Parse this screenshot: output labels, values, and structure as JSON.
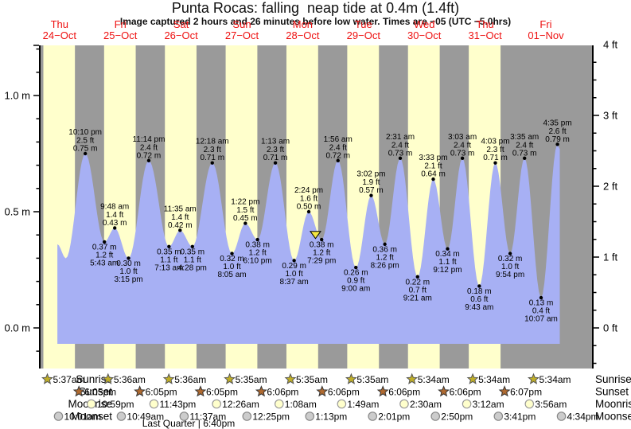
{
  "title": "Punta Rocas: falling  neap tide at 0.4m (1.4ft)",
  "subtitle": "Image captured 2 hours and 26 minutes before low water. Times are −05 (UTC −5.0hrs)",
  "days": [
    {
      "dow": "Thu",
      "date": "24−Oct"
    },
    {
      "dow": "Fri",
      "date": "25−Oct"
    },
    {
      "dow": "Sat",
      "date": "26−Oct"
    },
    {
      "dow": "Sun",
      "date": "27−Oct"
    },
    {
      "dow": "Mon",
      "date": "28−Oct"
    },
    {
      "dow": "Tue",
      "date": "29−Oct"
    },
    {
      "dow": "Wed",
      "date": "30−Oct"
    },
    {
      "dow": "Thu",
      "date": "31−Oct"
    },
    {
      "dow": "Fri",
      "date": "01−Nov"
    }
  ],
  "axes": {
    "left_unit": "m",
    "left_tick_labels": [
      "0.0 m",
      "0.5 m",
      "1.0 m"
    ],
    "right_unit": "ft",
    "right_tick_labels": [
      "0 ft",
      "1 ft",
      "2 ft",
      "3 ft",
      "4 ft"
    ]
  },
  "chart_data": {
    "type": "area",
    "title": "Punta Rocas tide height curve",
    "ylabel_left": "height (m)",
    "ylabel_right": "height (ft)",
    "ylim_m": [
      -0.17,
      1.22
    ],
    "grid": false,
    "legend": "none",
    "points": [
      {
        "d": 0,
        "time": "11:10 am",
        "m": 0.36,
        "edge": true
      },
      {
        "d": 0,
        "time": "2:30 pm",
        "m": 0.3,
        "edge": true
      },
      {
        "d": 0,
        "time": "10:10 pm",
        "m": 0.75,
        "ft": 2.5,
        "kind": "high"
      },
      {
        "d": 1,
        "time": "5:43 am",
        "m": 0.37,
        "ft": 1.2,
        "kind": "low"
      },
      {
        "d": 1,
        "time": "9:48 am",
        "m": 0.43,
        "ft": 1.4,
        "kind": "high"
      },
      {
        "d": 1,
        "time": "3:15 pm",
        "m": 0.3,
        "ft": 1.0,
        "kind": "low"
      },
      {
        "d": 1,
        "time": "11:14 pm",
        "m": 0.72,
        "ft": 2.4,
        "kind": "high"
      },
      {
        "d": 2,
        "time": "7:13 am",
        "m": 0.35,
        "ft": 1.1,
        "kind": "low"
      },
      {
        "d": 2,
        "time": "11:35 am",
        "m": 0.42,
        "ft": 1.4,
        "kind": "high"
      },
      {
        "d": 2,
        "time": "4:28 pm",
        "m": 0.35,
        "ft": 1.1,
        "kind": "low"
      },
      {
        "d": 3,
        "time": "12:18 am",
        "m": 0.71,
        "ft": 2.3,
        "kind": "high"
      },
      {
        "d": 3,
        "time": "8:05 am",
        "m": 0.32,
        "ft": 1.0,
        "kind": "low"
      },
      {
        "d": 3,
        "time": "1:22 pm",
        "m": 0.45,
        "ft": 1.5,
        "kind": "high"
      },
      {
        "d": 3,
        "time": "6:10 pm",
        "m": 0.38,
        "ft": 1.2,
        "kind": "low"
      },
      {
        "d": 4,
        "time": "1:13 am",
        "m": 0.71,
        "ft": 2.3,
        "kind": "high"
      },
      {
        "d": 4,
        "time": "8:37 am",
        "m": 0.29,
        "ft": 1.0,
        "kind": "low"
      },
      {
        "d": 4,
        "time": "2:24 pm",
        "m": 0.5,
        "ft": 1.6,
        "kind": "high"
      },
      {
        "d": 4,
        "time": "7:29 pm",
        "m": 0.38,
        "ft": 1.2,
        "kind": "low"
      },
      {
        "d": 5,
        "time": "1:56 am",
        "m": 0.72,
        "ft": 2.4,
        "kind": "high"
      },
      {
        "d": 5,
        "time": "9:00 am",
        "m": 0.26,
        "ft": 0.9,
        "kind": "low"
      },
      {
        "d": 5,
        "time": "3:02 pm",
        "m": 0.57,
        "ft": 1.9,
        "kind": "high"
      },
      {
        "d": 5,
        "time": "8:26 pm",
        "m": 0.36,
        "ft": 1.2,
        "kind": "low"
      },
      {
        "d": 6,
        "time": "2:31 am",
        "m": 0.73,
        "ft": 2.4,
        "kind": "high"
      },
      {
        "d": 6,
        "time": "9:21 am",
        "m": 0.22,
        "ft": 0.7,
        "kind": "low"
      },
      {
        "d": 6,
        "time": "3:33 pm",
        "m": 0.64,
        "ft": 2.1,
        "kind": "high"
      },
      {
        "d": 6,
        "time": "9:12 pm",
        "m": 0.34,
        "ft": 1.1,
        "kind": "low"
      },
      {
        "d": 7,
        "time": "3:03 am",
        "m": 0.73,
        "ft": 2.4,
        "kind": "high"
      },
      {
        "d": 7,
        "time": "9:43 am",
        "m": 0.18,
        "ft": 0.6,
        "kind": "low"
      },
      {
        "d": 7,
        "time": "4:03 pm",
        "m": 0.71,
        "ft": 2.3,
        "kind": "high"
      },
      {
        "d": 7,
        "time": "9:54 pm",
        "m": 0.32,
        "ft": 1.0,
        "kind": "low"
      },
      {
        "d": 8,
        "time": "3:35 am",
        "m": 0.73,
        "ft": 2.4,
        "kind": "high"
      },
      {
        "d": 8,
        "time": "10:07 am",
        "m": 0.13,
        "ft": 0.4,
        "kind": "low"
      },
      {
        "d": 8,
        "time": "4:35 pm",
        "m": 0.79,
        "ft": 2.6,
        "kind": "high"
      },
      {
        "d": 8,
        "time": "5:30 pm",
        "m": 0.77,
        "edge": true
      }
    ],
    "capture_marker": {
      "day": 4,
      "time": "5:03 pm"
    }
  },
  "astro": {
    "rows": [
      {
        "label": "Sunrise",
        "icon": "sunrise-star",
        "entries": [
          {
            "d": 0,
            "time": "5:37am"
          },
          {
            "d": 1,
            "time": "5:36am"
          },
          {
            "d": 2,
            "time": "5:36am"
          },
          {
            "d": 3,
            "time": "5:35am"
          },
          {
            "d": 4,
            "time": "5:35am"
          },
          {
            "d": 5,
            "time": "5:35am"
          },
          {
            "d": 6,
            "time": "5:34am"
          },
          {
            "d": 7,
            "time": "5:34am"
          },
          {
            "d": 8,
            "time": "5:34am"
          }
        ]
      },
      {
        "label": "Sunset",
        "icon": "sunset-star",
        "entries": [
          {
            "d": 0,
            "time": "6:05pm"
          },
          {
            "d": 1,
            "time": "6:05pm"
          },
          {
            "d": 2,
            "time": "6:05pm"
          },
          {
            "d": 3,
            "time": "6:06pm"
          },
          {
            "d": 4,
            "time": "6:06pm"
          },
          {
            "d": 5,
            "time": "6:06pm"
          },
          {
            "d": 6,
            "time": "6:06pm"
          },
          {
            "d": 7,
            "time": "6:07pm"
          }
        ]
      },
      {
        "label": "Moonrise",
        "icon": "moonrise-moon",
        "entries": [
          {
            "d": 0,
            "time": "10:59pm"
          },
          {
            "d": 1,
            "time": "11:43pm"
          },
          {
            "d": 3,
            "time": "12:26am"
          },
          {
            "d": 4,
            "time": "1:08am"
          },
          {
            "d": 5,
            "time": "1:49am"
          },
          {
            "d": 6,
            "time": "2:30am"
          },
          {
            "d": 7,
            "time": "3:12am"
          },
          {
            "d": 8,
            "time": "3:56am"
          }
        ]
      },
      {
        "label": "Moonset",
        "icon": "moonset-moon",
        "entries": [
          {
            "d": 0,
            "time": "10:01am"
          },
          {
            "d": 1,
            "time": "10:49am"
          },
          {
            "d": 2,
            "time": "11:37am"
          },
          {
            "d": 3,
            "time": "12:25pm"
          },
          {
            "d": 4,
            "time": "1:13pm"
          },
          {
            "d": 5,
            "time": "2:01pm"
          },
          {
            "d": 6,
            "time": "2:50pm"
          },
          {
            "d": 7,
            "time": "3:41pm"
          },
          {
            "d": 8,
            "time": "4:34pm"
          }
        ]
      }
    ],
    "moon_phase": "Last Quarter | 6:40pm"
  },
  "colors": {
    "daylight_band": "#ffffcc",
    "night_band": "#9a9a9a",
    "tide_fill": "#a7b0f4",
    "day_label_red": "#ee1111",
    "sunrise_star": "#bfae28",
    "sunset_star": "#b06a30",
    "moonrise_fill": "#ffffcc",
    "moonset_fill": "#cccccc",
    "marker_yellow": "#f5e642"
  }
}
